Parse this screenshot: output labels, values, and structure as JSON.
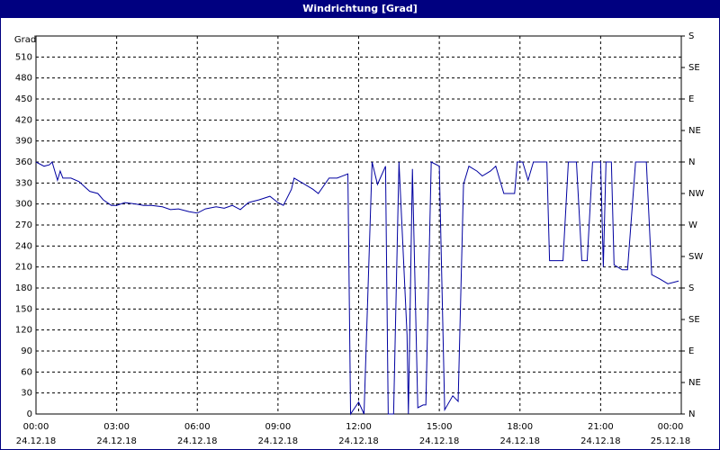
{
  "chart_data": {
    "type": "line",
    "title": "Windrichtung [Grad]",
    "y_label": "Grad",
    "xlim": [
      0,
      24
    ],
    "xticks": [
      {
        "value": 0,
        "label": "00:00"
      },
      {
        "value": 3,
        "label": "03:00"
      },
      {
        "value": 6,
        "label": "06:00"
      },
      {
        "value": 9,
        "label": "09:00"
      },
      {
        "value": 12,
        "label": "12:00"
      },
      {
        "value": 15,
        "label": "15:00"
      },
      {
        "value": 18,
        "label": "18:00"
      },
      {
        "value": 21,
        "label": "21:00"
      },
      {
        "value": 24,
        "label": "00:00"
      }
    ],
    "xtick_dates": [
      "24.12.18",
      "24.12.18",
      "24.12.18",
      "24.12.18",
      "24.12.18",
      "24.12.18",
      "24.12.18",
      "24.12.18",
      "25.12.18"
    ],
    "ylim": [
      0,
      540
    ],
    "yticks": [
      0,
      30,
      60,
      90,
      120,
      150,
      180,
      210,
      240,
      270,
      300,
      330,
      360,
      390,
      420,
      450,
      480,
      510
    ],
    "y2lim": [
      0,
      540
    ],
    "y2ticks": [
      {
        "value": 0,
        "label": "N"
      },
      {
        "value": 45,
        "label": "NE"
      },
      {
        "value": 90,
        "label": "E"
      },
      {
        "value": 135,
        "label": "SE"
      },
      {
        "value": 180,
        "label": "S"
      },
      {
        "value": 225,
        "label": "SW"
      },
      {
        "value": 270,
        "label": "W"
      },
      {
        "value": 315,
        "label": "NW"
      },
      {
        "value": 360,
        "label": "N"
      },
      {
        "value": 405,
        "label": "NE"
      },
      {
        "value": 450,
        "label": "E"
      },
      {
        "value": 495,
        "label": "SE"
      },
      {
        "value": 540,
        "label": "S"
      }
    ],
    "grid": true,
    "series": [
      {
        "color": "#0000a0",
        "x": [
          0,
          0.3,
          0.5,
          0.6,
          0.7,
          0.8,
          0.9,
          1.0,
          1.3,
          1.6,
          1.8,
          2.0,
          2.3,
          2.5,
          2.8,
          3.0,
          3.3,
          3.7,
          4.0,
          4.3,
          4.7,
          5.0,
          5.3,
          5.7,
          6.0,
          6.3,
          6.7,
          7.0,
          7.3,
          7.6,
          7.9,
          8.3,
          8.7,
          9.0,
          9.2,
          9.5,
          9.6,
          10.0,
          10.3,
          10.5,
          10.9,
          11.2,
          11.6,
          11.7,
          12.0,
          12.2,
          12.5,
          12.7,
          13.0,
          13.1,
          13.3,
          13.5,
          13.8,
          13.85,
          14.0,
          14.2,
          14.4,
          14.5,
          14.7,
          15.0,
          15.2,
          15.5,
          15.7,
          15.9,
          16.1,
          16.4,
          16.6,
          16.9,
          17.1,
          17.4,
          17.8,
          17.9,
          18.1,
          18.3,
          18.5,
          19.0,
          19.1,
          19.6,
          19.8,
          20.1,
          20.3,
          20.5,
          20.7,
          21.0,
          21.1,
          21.2,
          21.4,
          21.5,
          21.8,
          22.0,
          22.3,
          22.7,
          22.9,
          23.2,
          23.5,
          23.9
        ],
        "values": [
          360,
          354,
          356,
          360,
          347,
          334,
          347,
          337,
          337,
          332,
          325,
          318,
          315,
          306,
          298,
          298,
          302,
          300,
          298,
          298,
          296,
          292,
          293,
          289,
          287,
          293,
          296,
          294,
          298,
          292,
          302,
          306,
          311,
          302,
          298,
          321,
          337,
          328,
          321,
          315,
          337,
          337,
          343,
          0,
          17,
          0,
          360,
          328,
          354,
          0,
          0,
          360,
          113,
          0,
          350,
          9,
          13,
          13,
          360,
          354,
          6,
          26,
          18,
          328,
          354,
          347,
          340,
          347,
          354,
          315,
          315,
          360,
          360,
          334,
          360,
          360,
          219,
          219,
          360,
          360,
          219,
          219,
          360,
          360,
          210,
          360,
          360,
          213,
          206,
          206,
          360,
          360,
          199,
          193,
          186,
          190
        ]
      }
    ]
  }
}
